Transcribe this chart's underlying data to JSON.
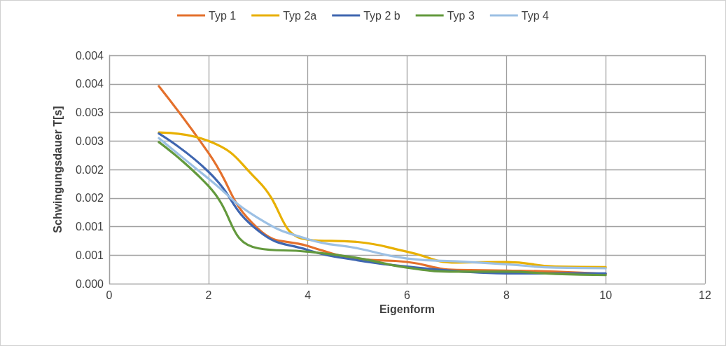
{
  "chart_data": {
    "type": "line",
    "xlabel": "Eigenform",
    "ylabel": "Schwingungsdauer T[s]",
    "x": [
      1,
      2,
      3,
      4,
      5,
      6,
      7,
      8,
      9,
      10
    ],
    "series": [
      {
        "name": "Typ 1",
        "color": "#e4702c",
        "values": [
          0.00346,
          0.00229,
          0.00096,
          0.00066,
          0.00044,
          0.00038,
          0.00024,
          0.00023,
          0.00021,
          0.00017
        ]
      },
      {
        "name": "Typ 2a",
        "color": "#e8b000",
        "values": [
          0.00265,
          0.0025,
          0.0018,
          0.00077,
          0.00073,
          0.00056,
          0.00037,
          0.00038,
          0.0003,
          0.00029
        ]
      },
      {
        "name": "Typ 2 b",
        "color": "#3f66b0",
        "values": [
          0.00263,
          0.00196,
          0.00093,
          0.00059,
          0.00041,
          0.0003,
          0.00022,
          0.00018,
          0.00018,
          0.00018
        ]
      },
      {
        "name": "Typ 3",
        "color": "#63993d",
        "values": [
          0.00248,
          0.00171,
          0.00062,
          0.00056,
          0.00045,
          0.00028,
          0.00021,
          0.00021,
          0.00017,
          0.00015
        ]
      },
      {
        "name": "Typ 4",
        "color": "#9cc0e4",
        "values": [
          0.00255,
          0.00184,
          0.00115,
          0.00078,
          0.00062,
          0.00044,
          0.00039,
          0.00034,
          0.00028,
          0.00027
        ]
      }
    ],
    "xlim": [
      0,
      12
    ],
    "xticks": [
      0,
      2,
      4,
      6,
      8,
      10,
      12
    ],
    "ylim": [
      0,
      0.004
    ],
    "yticks": [
      {
        "value": 0,
        "label": "0.000"
      },
      {
        "value": 0.0005,
        "label": "0.001"
      },
      {
        "value": 0.001,
        "label": "0.001"
      },
      {
        "value": 0.0015,
        "label": "0.002"
      },
      {
        "value": 0.002,
        "label": "0.002"
      },
      {
        "value": 0.0025,
        "label": "0.003"
      },
      {
        "value": 0.003,
        "label": "0.003"
      },
      {
        "value": 0.0035,
        "label": "0.004"
      },
      {
        "value": 0.004,
        "label": "0.004"
      }
    ],
    "grid": true,
    "legend": "top",
    "marker": "none",
    "line_style": "solid"
  }
}
